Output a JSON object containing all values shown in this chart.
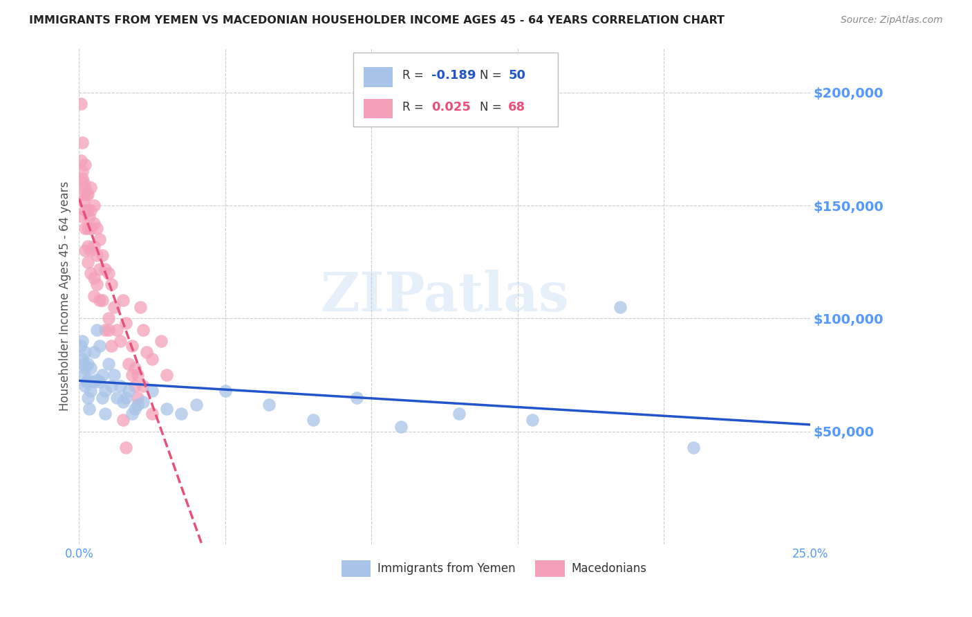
{
  "title": "IMMIGRANTS FROM YEMEN VS MACEDONIAN HOUSEHOLDER INCOME AGES 45 - 64 YEARS CORRELATION CHART",
  "source": "Source: ZipAtlas.com",
  "ylabel": "Householder Income Ages 45 - 64 years",
  "xlim": [
    0.0,
    0.25
  ],
  "ylim": [
    0,
    220000
  ],
  "yticks": [
    50000,
    100000,
    150000,
    200000
  ],
  "ytick_labels": [
    "$50,000",
    "$100,000",
    "$150,000",
    "$200,000"
  ],
  "watermark": "ZIPatlas",
  "yemen_color": "#a8c4e8",
  "macedonia_color": "#f4a0b8",
  "yemen_line_color": "#2255cc",
  "macedonia_line_color": "#e8507a",
  "yemen_x": [
    0.0005,
    0.001,
    0.001,
    0.0015,
    0.0015,
    0.002,
    0.002,
    0.002,
    0.0025,
    0.003,
    0.003,
    0.003,
    0.0035,
    0.004,
    0.004,
    0.005,
    0.005,
    0.006,
    0.006,
    0.007,
    0.007,
    0.008,
    0.008,
    0.009,
    0.009,
    0.01,
    0.011,
    0.012,
    0.013,
    0.014,
    0.015,
    0.016,
    0.017,
    0.018,
    0.019,
    0.02,
    0.022,
    0.025,
    0.03,
    0.035,
    0.04,
    0.05,
    0.065,
    0.08,
    0.095,
    0.11,
    0.13,
    0.155,
    0.185,
    0.21
  ],
  "yemen_y": [
    88000,
    90000,
    82000,
    80000,
    75000,
    85000,
    78000,
    70000,
    72000,
    80000,
    73000,
    65000,
    60000,
    78000,
    68000,
    85000,
    72000,
    95000,
    73000,
    88000,
    72000,
    75000,
    65000,
    68000,
    58000,
    80000,
    70000,
    75000,
    65000,
    70000,
    63000,
    65000,
    68000,
    58000,
    60000,
    62000,
    63000,
    68000,
    60000,
    58000,
    62000,
    68000,
    62000,
    55000,
    65000,
    52000,
    58000,
    55000,
    105000,
    43000
  ],
  "mace_x": [
    0.0005,
    0.0005,
    0.001,
    0.001,
    0.001,
    0.001,
    0.001,
    0.0015,
    0.0015,
    0.002,
    0.002,
    0.002,
    0.002,
    0.002,
    0.0025,
    0.003,
    0.003,
    0.003,
    0.003,
    0.003,
    0.0035,
    0.004,
    0.004,
    0.004,
    0.004,
    0.004,
    0.005,
    0.005,
    0.005,
    0.005,
    0.005,
    0.006,
    0.006,
    0.006,
    0.007,
    0.007,
    0.007,
    0.008,
    0.008,
    0.009,
    0.009,
    0.01,
    0.01,
    0.011,
    0.011,
    0.012,
    0.013,
    0.014,
    0.015,
    0.016,
    0.017,
    0.018,
    0.019,
    0.02,
    0.021,
    0.022,
    0.023,
    0.025,
    0.028,
    0.03,
    0.015,
    0.016,
    0.018,
    0.019,
    0.02,
    0.022,
    0.025,
    0.01
  ],
  "mace_y": [
    195000,
    170000,
    178000,
    165000,
    162000,
    155000,
    145000,
    160000,
    152000,
    168000,
    158000,
    148000,
    140000,
    130000,
    155000,
    155000,
    148000,
    140000,
    132000,
    125000,
    145000,
    158000,
    148000,
    140000,
    130000,
    120000,
    150000,
    142000,
    132000,
    118000,
    110000,
    140000,
    128000,
    115000,
    135000,
    122000,
    108000,
    128000,
    108000,
    122000,
    95000,
    120000,
    100000,
    115000,
    88000,
    105000,
    95000,
    90000,
    108000,
    98000,
    80000,
    75000,
    70000,
    65000,
    105000,
    95000,
    85000,
    82000,
    90000,
    75000,
    55000,
    43000,
    88000,
    78000,
    75000,
    70000,
    58000,
    95000
  ],
  "grid_color": "#cccccc",
  "bg_color": "#ffffff",
  "axis_label_color": "#5599ff",
  "title_color": "#222222",
  "ylabel_color": "#555555",
  "source_color": "#888888",
  "legend_text_color": "#333333"
}
